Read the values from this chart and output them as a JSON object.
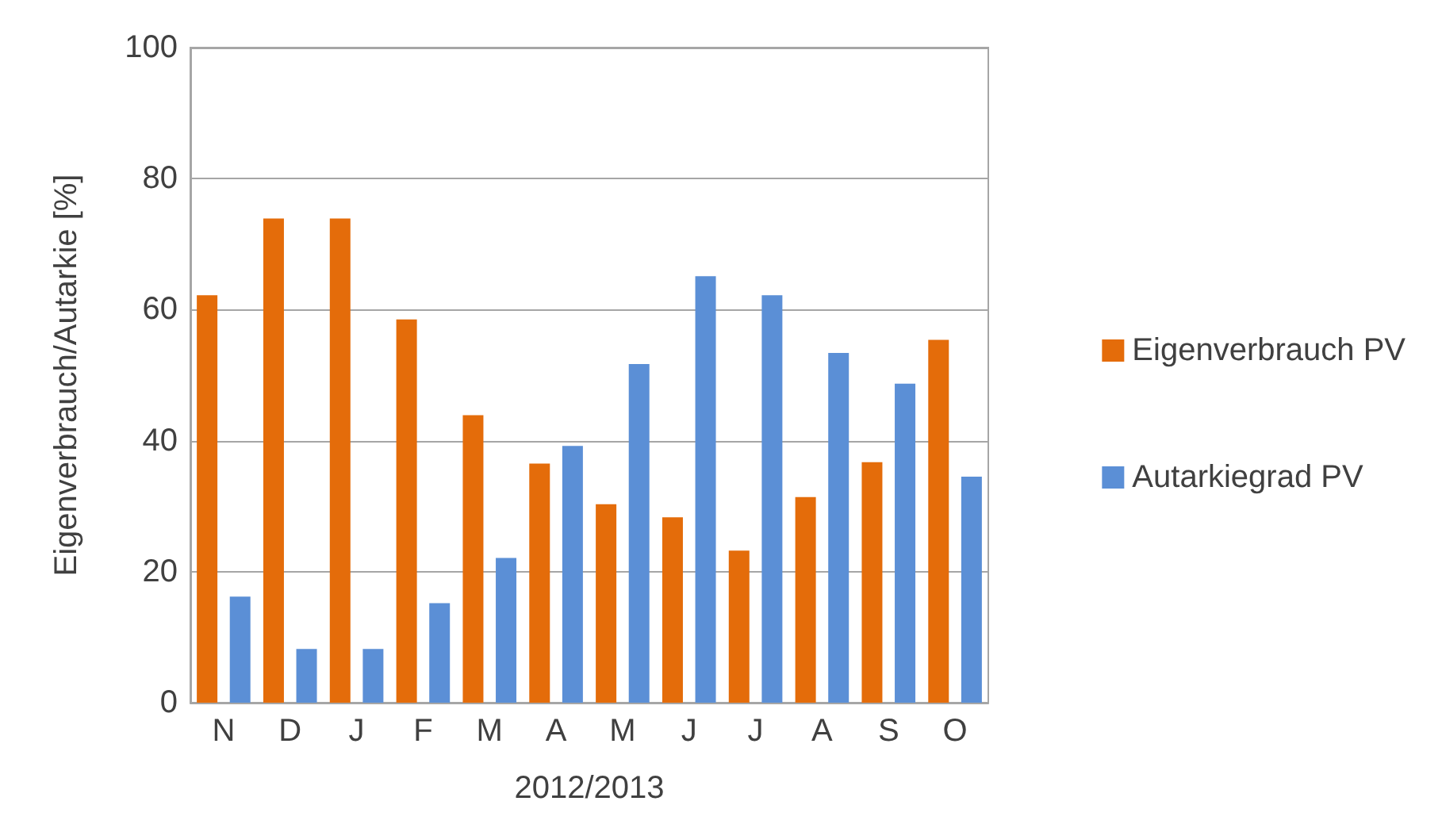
{
  "chart_data": {
    "type": "bar",
    "xlabel": "2012/2013",
    "ylabel": "Eigenverbrauch/Autarkie [%]",
    "categories": [
      "N",
      "D",
      "J",
      "F",
      "M",
      "A",
      "M",
      "J",
      "J",
      "A",
      "S",
      "O"
    ],
    "series": [
      {
        "name": "Eigenverbrauch PV",
        "color": "#e46c0a",
        "values": [
          62.2,
          73.9,
          73.9,
          58.5,
          43.9,
          36.5,
          30.3,
          28.3,
          23.2,
          31.4,
          36.7,
          55.4
        ]
      },
      {
        "name": "Autarkiegrad PV",
        "color": "#5b8fd6",
        "values": [
          16.2,
          8.2,
          8.2,
          15.2,
          22.1,
          39.2,
          51.7,
          65.1,
          62.2,
          53.4,
          48.7,
          34.5
        ]
      }
    ],
    "ylim": [
      0,
      100
    ],
    "yticks": [
      0,
      20,
      40,
      60,
      80,
      100
    ],
    "grid": "y",
    "legend": "right"
  }
}
